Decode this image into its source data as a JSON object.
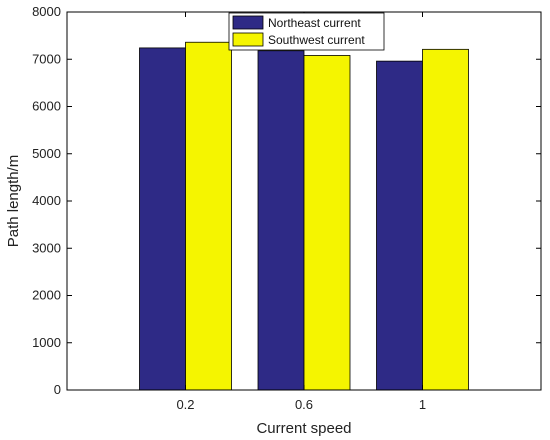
{
  "chart_data": {
    "type": "bar",
    "title": "",
    "xlabel": "Current speed",
    "ylabel": "Path length/m",
    "categories": [
      "0.2",
      "0.6",
      "1"
    ],
    "series": [
      {
        "name": "Northeast current",
        "values": [
          7240,
          7180,
          6960
        ],
        "color": "#2e2a86"
      },
      {
        "name": "Southwest current",
        "values": [
          7360,
          7080,
          7210
        ],
        "color": "#f5f500"
      }
    ],
    "ylim": [
      0,
      8000
    ],
    "yticks": [
      0,
      1000,
      2000,
      3000,
      4000,
      5000,
      6000,
      7000,
      8000
    ],
    "grid": false,
    "legend": "top-center"
  }
}
